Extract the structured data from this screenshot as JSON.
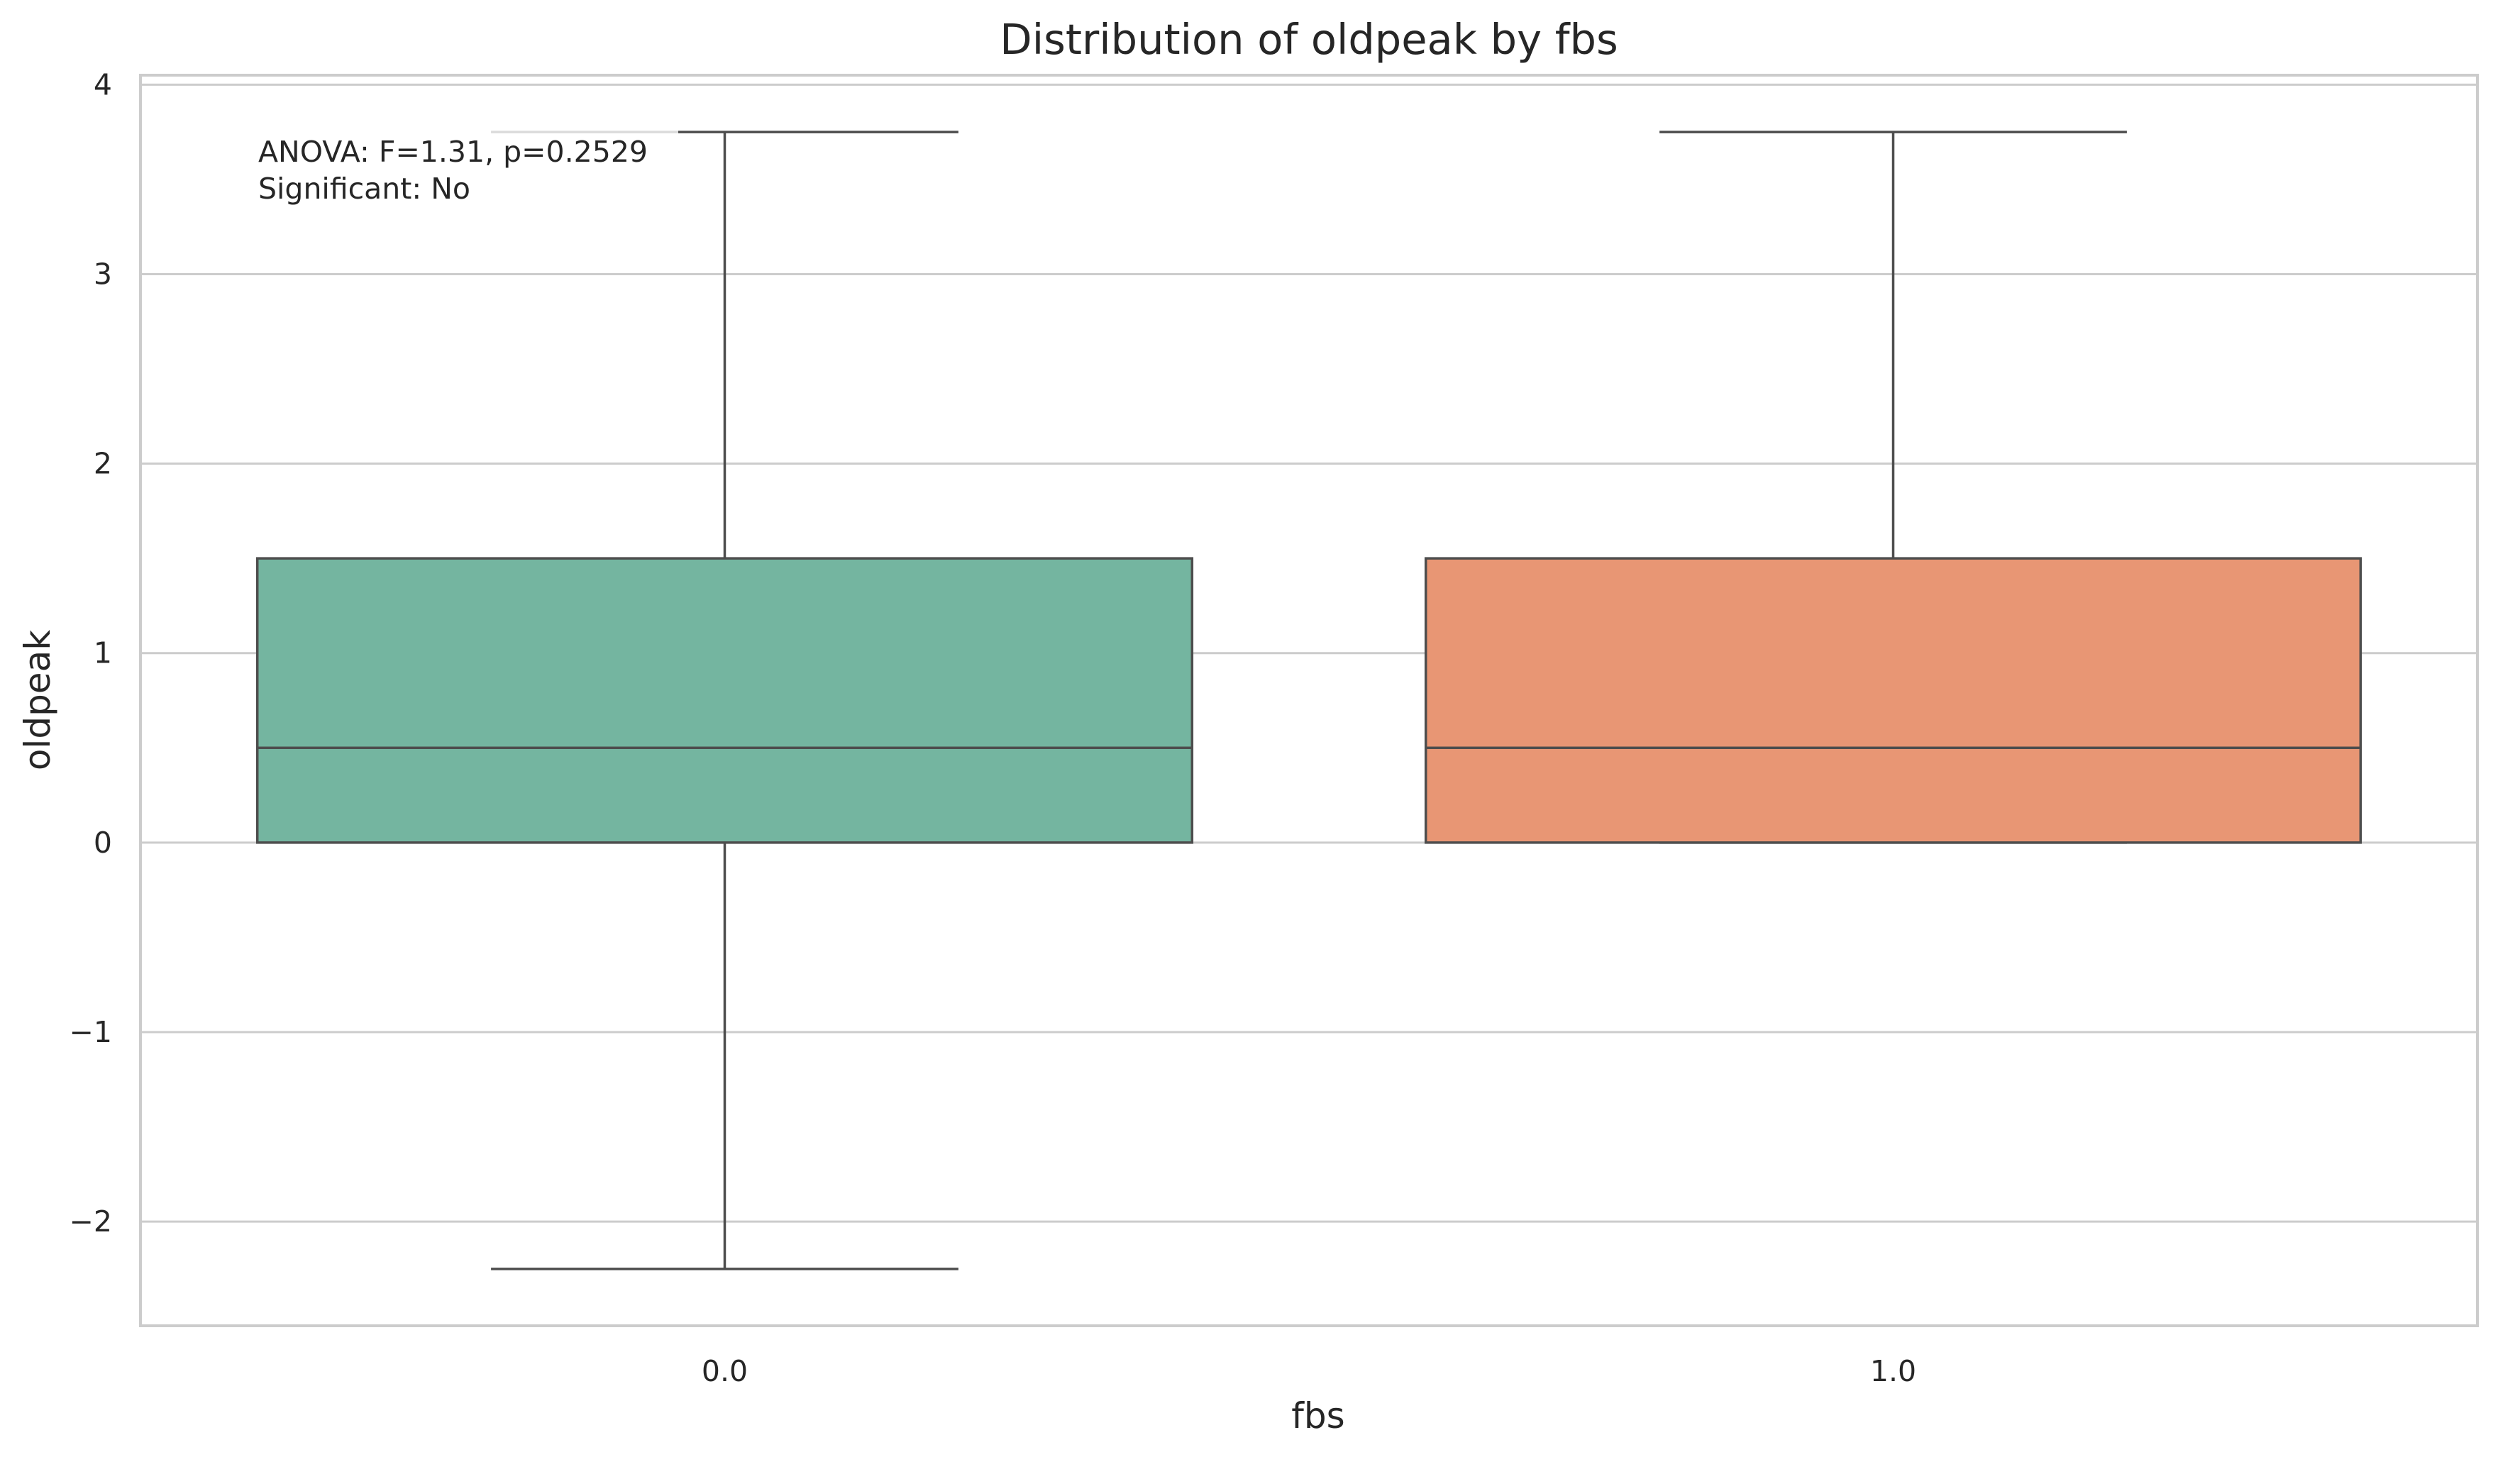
{
  "chart_data": {
    "type": "box",
    "title": "Distribution of oldpeak by fbs",
    "xlabel": "fbs",
    "ylabel": "oldpeak",
    "categories": [
      "0.0",
      "1.0"
    ],
    "y_ticks": [
      -2,
      -1,
      0,
      1,
      2,
      3,
      4
    ],
    "y_tick_labels": [
      "−2",
      "−1",
      "0",
      "1",
      "2",
      "3",
      "4"
    ],
    "ylim": [
      -2.55,
      4.05
    ],
    "grid": true,
    "boxes": [
      {
        "category": "0.0",
        "whisker_low": -2.25,
        "q1": 0.0,
        "median": 0.5,
        "q3": 1.5,
        "whisker_high": 3.75,
        "color": "#74b5a0"
      },
      {
        "category": "1.0",
        "whisker_low": 0.0,
        "q1": 0.0,
        "median": 0.5,
        "q3": 1.5,
        "whisker_high": 3.75,
        "color": "#e89674"
      }
    ],
    "annotation": {
      "line1": "ANOVA: F=1.31, p=0.2529",
      "line2": "Significant: No"
    }
  }
}
